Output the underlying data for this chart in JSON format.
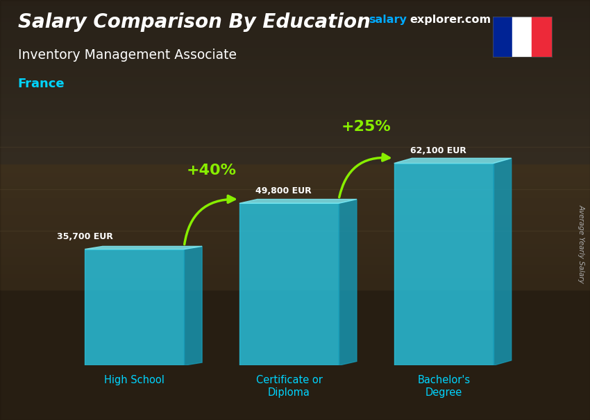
{
  "title_main": "Salary Comparison By Education",
  "title_sub": "Inventory Management Associate",
  "country": "France",
  "watermark_salary": "salary",
  "watermark_rest": "explorer.com",
  "ylabel": "Average Yearly Salary",
  "categories": [
    "High School",
    "Certificate or\nDiploma",
    "Bachelor's\nDegree"
  ],
  "values": [
    35700,
    49800,
    62100
  ],
  "labels": [
    "35,700 EUR",
    "49,800 EUR",
    "62,100 EUR"
  ],
  "pct_labels": [
    "+40%",
    "+25%"
  ],
  "bar_front": "#29c4e0",
  "bar_top": "#7eedf7",
  "bar_side": "#1799b5",
  "bg_color": "#6b5a3e",
  "title_color": "#ffffff",
  "sub_color": "#ffffff",
  "country_color": "#00d4ff",
  "label_color": "#ffffff",
  "pct_color": "#88ee00",
  "arrow_color": "#88ee00",
  "cat_color": "#00d4ff",
  "watermark_salary_color": "#00aaff",
  "watermark_rest_color": "#ffffff",
  "flag_blue": "#002395",
  "flag_white": "#ffffff",
  "flag_red": "#ED2939",
  "bar_width": 0.18,
  "ylim": [
    0,
    80000
  ],
  "bar_positions": [
    0.22,
    0.5,
    0.78
  ],
  "bar_alpha": 0.82
}
